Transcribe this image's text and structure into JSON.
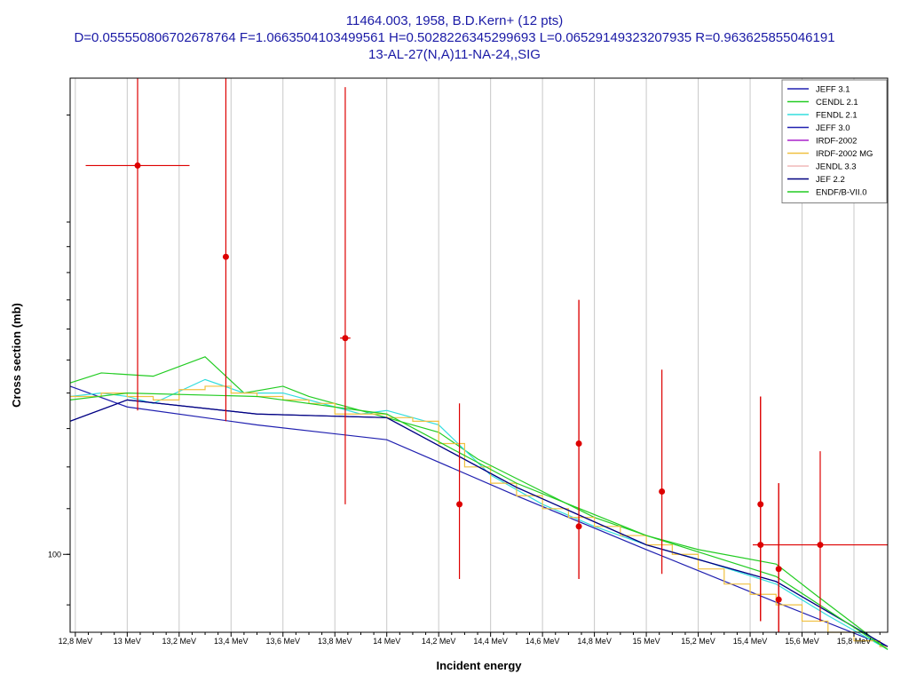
{
  "titles": {
    "line1": "11464.003, 1958, B.D.Kern+ (12 pts)",
    "line2": "D=0.055550806702678764 F=1.0663504103499561 H=0.5028226345299693 L=0.06529149323207935 R=0.963625855046191",
    "line3": "13-AL-27(N,A)11-NA-24,,SIG"
  },
  "colors": {
    "title": "#1a1aa6",
    "grid": "#c8c8c8",
    "exp_data": "#dd0000"
  },
  "chart_data": {
    "type": "line",
    "xlabel": "Incident energy",
    "ylabel": "Cross section (mb)",
    "x_unit": "MeV",
    "y_scale": "log",
    "xlim": [
      12.78,
      15.93
    ],
    "ylim": [
      85,
      270
    ],
    "x_ticks": [
      12.8,
      13.0,
      13.2,
      13.4,
      13.6,
      13.8,
      14.0,
      14.2,
      14.4,
      14.6,
      14.8,
      15.0,
      15.2,
      15.4,
      15.6,
      15.8
    ],
    "x_tick_labels": [
      "12,8 MeV",
      "13 MeV",
      "13,2 MeV",
      "13,4 MeV",
      "13,6 MeV",
      "13,8 MeV",
      "14 MeV",
      "14,2 MeV",
      "14,4 MeV",
      "14,6 MeV",
      "14,8 MeV",
      "15 MeV",
      "15,2 MeV",
      "15,4 MeV",
      "15,6 MeV",
      "15,8 MeV"
    ],
    "y_ticks": [
      100
    ],
    "y_tick_labels": [
      "100"
    ],
    "grid": true,
    "legend_position": "top-right",
    "series": [
      {
        "name": "JEFF 3.1",
        "color": "#2020b0",
        "step": false,
        "x": [
          12.78,
          13.0,
          13.5,
          14.0,
          14.5,
          15.0,
          15.5,
          15.93
        ],
        "y": [
          142,
          136,
          131,
          127,
          113,
          101,
          90.5,
          82.5
        ]
      },
      {
        "name": "CENDL 2.1",
        "color": "#22cc22",
        "step": false,
        "x": [
          12.78,
          12.9,
          13.1,
          13.3,
          13.45,
          13.6,
          13.7,
          14.0,
          14.2,
          14.35,
          14.6,
          14.8,
          15.0,
          15.2,
          15.5,
          15.65,
          15.93
        ],
        "y": [
          143,
          146,
          145,
          151,
          140,
          142,
          139,
          133,
          129,
          122,
          114,
          108,
          104,
          101,
          98,
          92,
          82
        ]
      },
      {
        "name": "FENDL 2.1",
        "color": "#33dddd",
        "step": false,
        "x": [
          12.78,
          12.9,
          13.0,
          13.1,
          13.3,
          13.45,
          13.6,
          13.8,
          13.9,
          14.0,
          14.2,
          14.4,
          14.6,
          14.8,
          15.0,
          15.2,
          15.5,
          15.7,
          15.93
        ],
        "y": [
          139,
          140,
          139,
          137,
          144,
          140,
          140,
          136,
          134,
          135,
          131,
          118,
          111,
          106,
          102,
          99,
          94,
          88,
          82
        ]
      },
      {
        "name": "JEFF 3.0",
        "color": "#2020b0",
        "step": false,
        "x": [
          12.78,
          13.0,
          13.5,
          14.0,
          14.5,
          15.0,
          15.5,
          15.93
        ],
        "y": [
          132,
          138,
          134,
          133,
          115,
          102,
          94.5,
          82.5
        ]
      },
      {
        "name": "IRDF-2002",
        "color": "#aa22cc",
        "step": false,
        "x": [],
        "y": []
      },
      {
        "name": "IRDF-2002 MG",
        "color": "#f0c040",
        "step": true,
        "x": [
          12.78,
          12.9,
          13.0,
          13.1,
          13.2,
          13.3,
          13.4,
          13.5,
          13.6,
          13.7,
          13.8,
          13.9,
          14.0,
          14.1,
          14.2,
          14.3,
          14.4,
          14.5,
          14.6,
          14.7,
          14.8,
          14.9,
          15.0,
          15.1,
          15.2,
          15.3,
          15.4,
          15.5,
          15.6,
          15.7,
          15.8,
          15.9,
          15.93
        ],
        "y": [
          139,
          140,
          139,
          138,
          141,
          142,
          140,
          139,
          138,
          137,
          134,
          134,
          133,
          132,
          126,
          120,
          116,
          113,
          110,
          108,
          106,
          104,
          102,
          100,
          97,
          94,
          92,
          90,
          87,
          85,
          83.5,
          82.5,
          82.5
        ]
      },
      {
        "name": "JENDL 3.3",
        "color": "#f0b8b8",
        "step": false,
        "x": [],
        "y": []
      },
      {
        "name": "JEF 2.2",
        "color": "#000080",
        "step": false,
        "x": [
          12.78,
          13.0,
          13.5,
          14.0,
          14.5,
          15.0,
          15.5,
          15.93
        ],
        "y": [
          132,
          138,
          134,
          133,
          115,
          102,
          94.5,
          82.5
        ]
      },
      {
        "name": "ENDF/B-VII.0",
        "color": "#22cc22",
        "step": false,
        "x": [
          12.78,
          13.0,
          13.5,
          14.0,
          14.5,
          15.0,
          15.5,
          15.93
        ],
        "y": [
          138,
          140,
          139,
          134,
          116,
          104,
          95.5,
          82
        ]
      }
    ],
    "experimental": [
      {
        "x": 13.04,
        "y": 225,
        "xerr": 0.2,
        "ylo": 135,
        "yhi": 280
      },
      {
        "x": 13.38,
        "y": 186,
        "xerr": 0,
        "ylo": 132,
        "yhi": 280
      },
      {
        "x": 13.84,
        "y": 157,
        "xerr": 0.02,
        "ylo": 111,
        "yhi": 265
      },
      {
        "x": 14.28,
        "y": 111,
        "xerr": 0,
        "ylo": 95,
        "yhi": 137
      },
      {
        "x": 14.74,
        "y": 126,
        "xerr": 0,
        "ylo": 95,
        "yhi": 170
      },
      {
        "x": 14.74,
        "y": 106,
        "xerr": 0,
        "ylo": 95,
        "yhi": 170
      },
      {
        "x": 15.06,
        "y": 114,
        "xerr": 0,
        "ylo": 96,
        "yhi": 147
      },
      {
        "x": 15.44,
        "y": 111,
        "xerr": 0,
        "ylo": 87,
        "yhi": 139
      },
      {
        "x": 15.44,
        "y": 102,
        "xerr": 0,
        "ylo": 87,
        "yhi": 139
      },
      {
        "x": 15.51,
        "y": 91,
        "xerr": 0,
        "ylo": 80,
        "yhi": 116
      },
      {
        "x": 15.51,
        "y": 97,
        "xerr": 0,
        "ylo": 80,
        "yhi": 116
      },
      {
        "x": 15.67,
        "y": 102,
        "xerr": 0.26,
        "ylo": 87,
        "yhi": 124
      }
    ]
  }
}
